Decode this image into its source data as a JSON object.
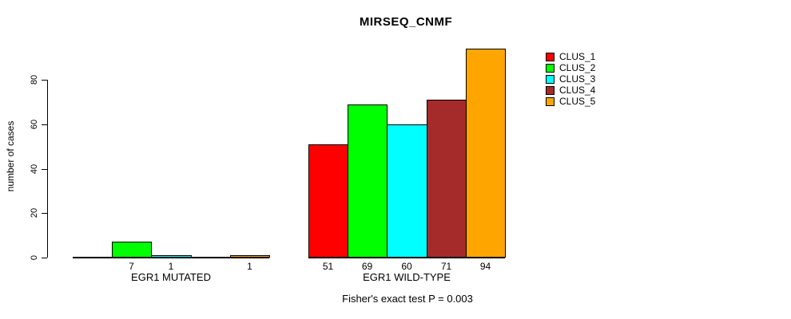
{
  "chart_data": {
    "type": "bar",
    "title": "MIRSEQ_CNMF",
    "ylabel": "number of cases",
    "ylim": [
      0,
      94
    ],
    "yticks": [
      0,
      20,
      40,
      60,
      80
    ],
    "grid": false,
    "categories": [
      "EGR1 MUTATED",
      "EGR1 WILD-TYPE"
    ],
    "series": [
      {
        "name": "CLUS_1",
        "color": "#FF0000",
        "values": [
          0,
          51
        ]
      },
      {
        "name": "CLUS_2",
        "color": "#00FF00",
        "values": [
          7,
          69
        ]
      },
      {
        "name": "CLUS_3",
        "color": "#00FFFF",
        "values": [
          1,
          60
        ]
      },
      {
        "name": "CLUS_4",
        "color": "#A52A2A",
        "values": [
          0,
          71
        ]
      },
      {
        "name": "CLUS_5",
        "color": "#FFA500",
        "values": [
          1,
          94
        ]
      }
    ],
    "bar_labels": [
      [
        "",
        "7",
        "1",
        "",
        "1"
      ],
      [
        "51",
        "69",
        "60",
        "71",
        "94"
      ]
    ],
    "legend": {
      "position": "right",
      "entries": [
        "CLUS_1",
        "CLUS_2",
        "CLUS_3",
        "CLUS_4",
        "CLUS_5"
      ]
    },
    "annotation": "Fisher's exact test P = 0.003",
    "axis_color": "#000000",
    "bar_border_color": "#000000"
  }
}
